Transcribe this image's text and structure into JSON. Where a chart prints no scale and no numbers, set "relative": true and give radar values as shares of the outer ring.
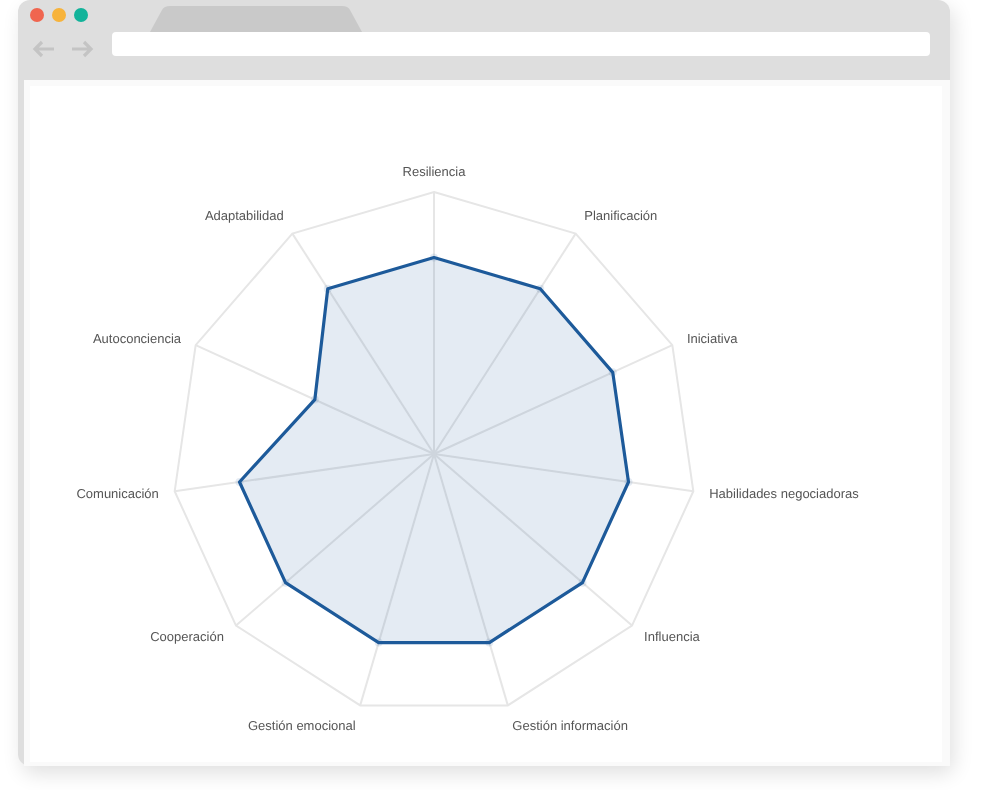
{
  "chart_data": {
    "type": "radar",
    "categories": [
      "Resiliencia",
      "Planificación",
      "Iniciativa",
      "Habilidades negociadoras",
      "Influencia",
      "Gestión información",
      "Gestión emocional",
      "Cooperación",
      "Comunicación",
      "Autoconciencia",
      "Adaptabilidad"
    ],
    "relative": true,
    "series": [
      {
        "color": "#1d5a9a",
        "values": [
          0.75,
          0.75,
          0.75,
          0.75,
          0.75,
          0.75,
          0.75,
          0.75,
          0.75,
          0.5,
          0.75
        ]
      }
    ],
    "grid": true,
    "marker": "circle"
  }
}
